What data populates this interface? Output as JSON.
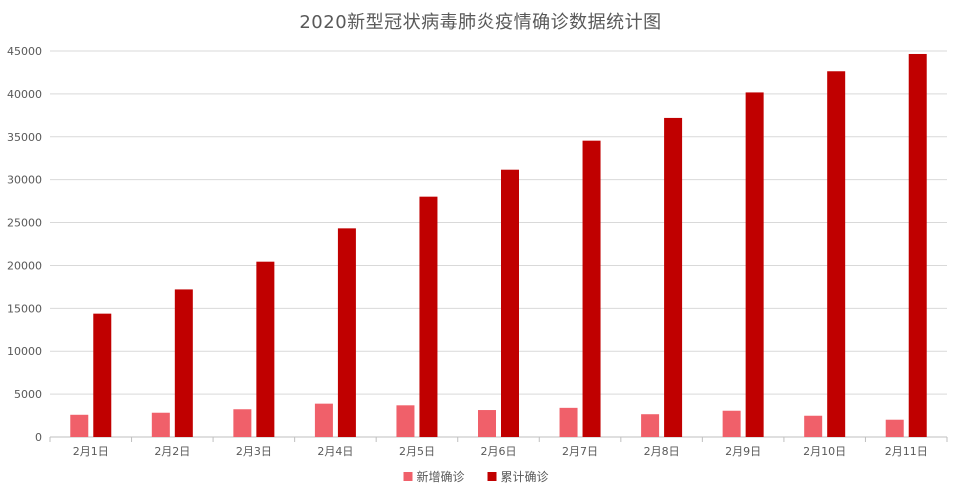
{
  "chart_data": {
    "type": "bar",
    "title": "2020新型冠状病毒肺炎疫情确诊数据统计图",
    "categories": [
      "2月1日",
      "2月2日",
      "2月3日",
      "2月4日",
      "2月5日",
      "2月6日",
      "2月7日",
      "2月8日",
      "2月9日",
      "2月10日",
      "2月11日"
    ],
    "series": [
      {
        "name": "新增确诊",
        "color": "#f0606a",
        "values": [
          2590,
          2829,
          3235,
          3887,
          3694,
          3143,
          3399,
          2656,
          3062,
          2478,
          2015
        ]
      },
      {
        "name": "累计确诊",
        "color": "#c00000",
        "values": [
          14380,
          17205,
          20438,
          24324,
          28018,
          31161,
          34546,
          37198,
          40171,
          42638,
          44653
        ]
      }
    ],
    "xlabel": "",
    "ylabel": "",
    "ylim": [
      0,
      45000
    ],
    "yticks": [
      0,
      5000,
      10000,
      15000,
      20000,
      25000,
      30000,
      35000,
      40000,
      45000
    ],
    "grid": true,
    "legend_position": "bottom"
  }
}
